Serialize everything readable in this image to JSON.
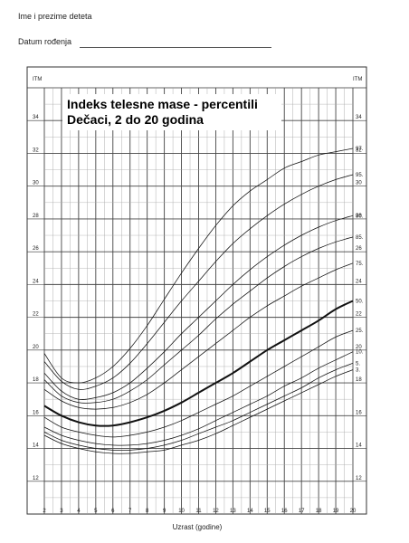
{
  "form": {
    "name_label": "Ime i prezime deteta",
    "dob_label": "Datum rođenja"
  },
  "chart_data": {
    "type": "line",
    "title": "Indeks telesne mase - percentili",
    "subtitle": "Dečaci, 2 do 20 godina",
    "xlabel": "Uzrast (godine)",
    "ylabel": "ITM",
    "xlim": [
      2,
      20
    ],
    "ylim": [
      10,
      36
    ],
    "x_ticks": [
      "2",
      "3",
      "4",
      "5",
      "6",
      "7",
      "8",
      "9",
      "10",
      "11",
      "12",
      "13",
      "14",
      "15",
      "16",
      "17",
      "18",
      "19",
      "20"
    ],
    "y_ticks": [
      "12",
      "14",
      "16",
      "18",
      "20",
      "22",
      "24",
      "26",
      "28",
      "30",
      "32",
      "34"
    ],
    "grid": true,
    "x": [
      2,
      3,
      4,
      5,
      6,
      7,
      8,
      9,
      10,
      11,
      12,
      13,
      14,
      15,
      16,
      17,
      18,
      19,
      20
    ],
    "series": [
      {
        "name": "97",
        "values": [
          19.8,
          18.3,
          18.0,
          18.3,
          19.0,
          20.1,
          21.5,
          23.1,
          24.7,
          26.2,
          27.6,
          28.8,
          29.7,
          30.4,
          31.1,
          31.5,
          31.9,
          32.1,
          32.3
        ]
      },
      {
        "name": "95",
        "values": [
          19.3,
          18.1,
          17.6,
          17.8,
          18.3,
          19.2,
          20.4,
          21.7,
          23.0,
          24.2,
          25.4,
          26.5,
          27.4,
          28.2,
          28.9,
          29.5,
          30.0,
          30.4,
          30.7
        ]
      },
      {
        "name": "90",
        "values": [
          18.6,
          17.5,
          17.0,
          17.1,
          17.4,
          18.0,
          18.9,
          19.9,
          21.0,
          22.0,
          23.0,
          24.0,
          24.9,
          25.7,
          26.4,
          27.0,
          27.5,
          27.9,
          28.2
        ]
      },
      {
        "name": "85",
        "values": [
          18.2,
          17.2,
          16.8,
          16.8,
          17.0,
          17.5,
          18.2,
          19.1,
          20.0,
          20.9,
          21.9,
          22.8,
          23.6,
          24.4,
          25.1,
          25.7,
          26.2,
          26.6,
          26.9
        ]
      },
      {
        "name": "75",
        "values": [
          17.6,
          16.9,
          16.5,
          16.4,
          16.5,
          16.8,
          17.3,
          18.0,
          18.8,
          19.6,
          20.4,
          21.2,
          22.0,
          22.7,
          23.3,
          23.9,
          24.4,
          24.9,
          25.3
        ]
      },
      {
        "name": "50",
        "values": [
          16.6,
          16.0,
          15.6,
          15.4,
          15.4,
          15.6,
          15.9,
          16.3,
          16.8,
          17.4,
          18.0,
          18.6,
          19.3,
          20.0,
          20.6,
          21.2,
          21.8,
          22.5,
          23.0
        ]
      },
      {
        "name": "25",
        "values": [
          15.9,
          15.3,
          15.0,
          14.8,
          14.7,
          14.8,
          15.0,
          15.3,
          15.7,
          16.2,
          16.7,
          17.2,
          17.8,
          18.4,
          19.0,
          19.6,
          20.2,
          20.8,
          21.2
        ]
      },
      {
        "name": "10",
        "values": [
          15.3,
          14.8,
          14.5,
          14.3,
          14.2,
          14.2,
          14.3,
          14.5,
          14.8,
          15.2,
          15.7,
          16.2,
          16.7,
          17.2,
          17.8,
          18.3,
          18.9,
          19.4,
          19.9
        ]
      },
      {
        "name": "5",
        "values": [
          15.0,
          14.5,
          14.2,
          14.0,
          13.9,
          13.9,
          14.0,
          14.2,
          14.5,
          14.9,
          15.3,
          15.7,
          16.2,
          16.7,
          17.2,
          17.7,
          18.3,
          18.8,
          19.2
        ]
      },
      {
        "name": "3",
        "values": [
          14.8,
          14.3,
          14.0,
          13.8,
          13.7,
          13.7,
          13.8,
          13.9,
          14.2,
          14.5,
          14.9,
          15.4,
          15.9,
          16.4,
          16.9,
          17.4,
          17.9,
          18.4,
          18.8
        ]
      }
    ]
  }
}
